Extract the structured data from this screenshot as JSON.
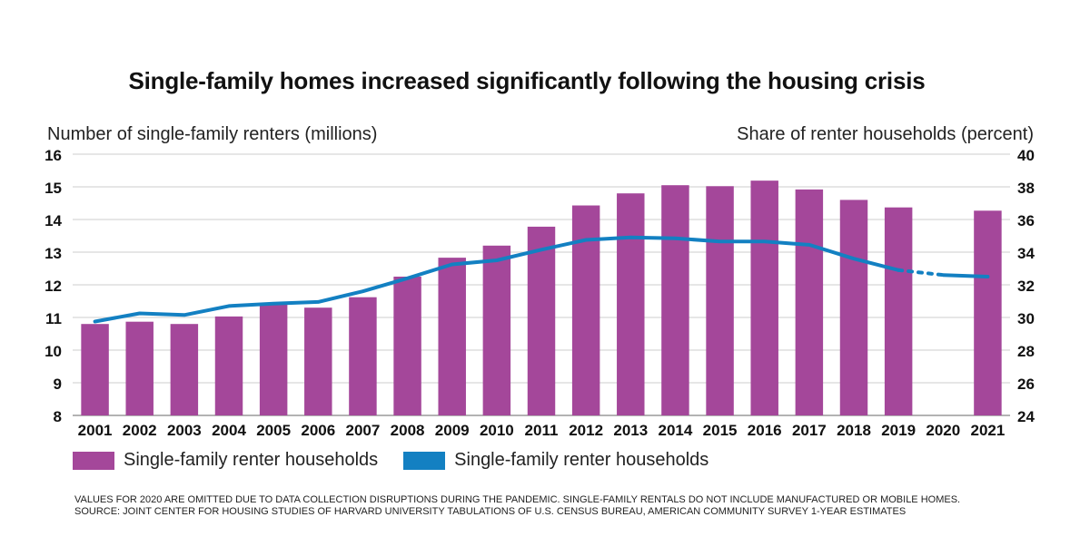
{
  "chart_data": {
    "type": "bar",
    "title": "Single-family homes increased significantly following the housing crisis",
    "ylabel_left": "Number of single-family renters (millions)",
    "ylabel_right": "Share of renter households (percent)",
    "categories": [
      "2001",
      "2002",
      "2003",
      "2004",
      "2005",
      "2006",
      "2007",
      "2008",
      "2009",
      "2010",
      "2011",
      "2012",
      "2013",
      "2014",
      "2015",
      "2016",
      "2017",
      "2018",
      "2019",
      "2020",
      "2021"
    ],
    "left_axis": {
      "min": 8,
      "max": 16,
      "ticks": [
        8,
        9,
        10,
        11,
        12,
        13,
        14,
        15,
        16
      ]
    },
    "right_axis": {
      "min": 24,
      "max": 40,
      "ticks": [
        24,
        26,
        28,
        30,
        32,
        34,
        36,
        38,
        40
      ]
    },
    "grid": true,
    "legend_position": "bottom-left",
    "series": [
      {
        "name": "Single-family renter households",
        "type": "bar",
        "axis": "left",
        "color": "#a4479a",
        "values": [
          10.8,
          10.87,
          10.8,
          11.03,
          11.4,
          11.3,
          11.62,
          12.25,
          12.83,
          13.2,
          13.78,
          14.43,
          14.8,
          15.05,
          15.02,
          15.19,
          14.92,
          14.6,
          14.37,
          null,
          14.27
        ]
      },
      {
        "name": "Single-family renter households",
        "type": "line",
        "axis": "right",
        "color": "#1380c2",
        "values": [
          29.75,
          30.25,
          30.15,
          30.7,
          30.85,
          30.95,
          31.6,
          32.4,
          33.25,
          33.5,
          34.15,
          34.75,
          34.9,
          34.85,
          34.65,
          34.65,
          34.45,
          33.6,
          32.9,
          32.6,
          32.5
        ],
        "dashed_segment": [
          "2019",
          "2020"
        ]
      }
    ]
  },
  "legend": {
    "bar_label": "Single-family renter households",
    "line_label": "Single-family renter households"
  },
  "notes": {
    "line1": "VALUES FOR 2020 ARE OMITTED DUE TO DATA COLLECTION DISRUPTIONS DURING THE PANDEMIC. SINGLE-FAMILY RENTALS DO NOT INCLUDE MANUFACTURED OR MOBILE HOMES.",
    "line2": "SOURCE: JOINT CENTER FOR HOUSING STUDIES OF HARVARD UNIVERSITY TABULATIONS OF U.S. CENSUS BUREAU, AMERICAN COMMUNITY SURVEY 1-YEAR ESTIMATES"
  }
}
